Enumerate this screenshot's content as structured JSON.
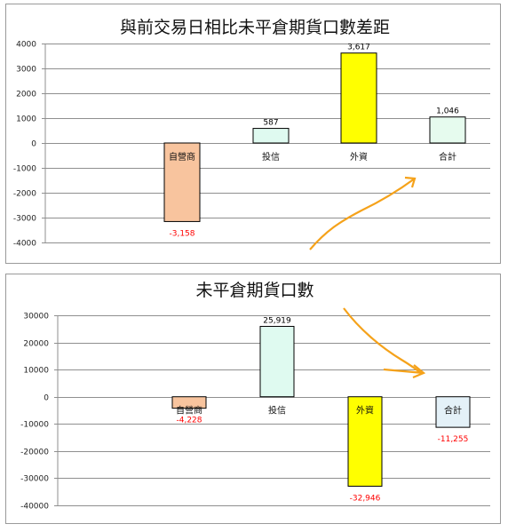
{
  "colors": {
    "self_trading": "#f8c49e",
    "investment_trust": "#dffaf0",
    "foreign": "#ffff00",
    "total_top": "#e6fbee",
    "total_bottom": "#e4f1f8",
    "grid": "#8f8f8f",
    "negative_label": "#ff0000",
    "positive_label": "#000000",
    "arrow": "#f5a21a"
  },
  "chart_data": [
    {
      "type": "bar",
      "title": "與前交易日相比未平倉期貨口數差距",
      "categories": [
        "自營商",
        "投信",
        "外資",
        "合計"
      ],
      "values": [
        -3158,
        587,
        3617,
        1046
      ],
      "value_labels": [
        "-3,158",
        "587",
        "3,617",
        "1,046"
      ],
      "ylim": [
        -4000,
        4000
      ],
      "yticks": [
        "4000",
        "3000",
        "2000",
        "1000",
        "0",
        "-1000",
        "-2000",
        "-3000",
        "-4000"
      ],
      "ytick_values": [
        4000,
        3000,
        2000,
        1000,
        0,
        -1000,
        -2000,
        -3000,
        -4000
      ],
      "grid": true,
      "legend": "none"
    },
    {
      "type": "bar",
      "title": "未平倉期貨口數",
      "categories": [
        "自營商",
        "投信",
        "外資",
        "合計"
      ],
      "values": [
        -4228,
        25919,
        -32946,
        -11255
      ],
      "value_labels": [
        "-4,228",
        "25,919",
        "-32,946",
        "-11,255"
      ],
      "ylim": [
        -40000,
        30000
      ],
      "yticks": [
        "30000",
        "20000",
        "10000",
        "0",
        "-10000",
        "-20000",
        "-30000",
        "-40000"
      ],
      "ytick_values": [
        30000,
        20000,
        10000,
        0,
        -10000,
        -20000,
        -30000,
        -40000
      ],
      "grid": true,
      "legend": "none"
    }
  ]
}
